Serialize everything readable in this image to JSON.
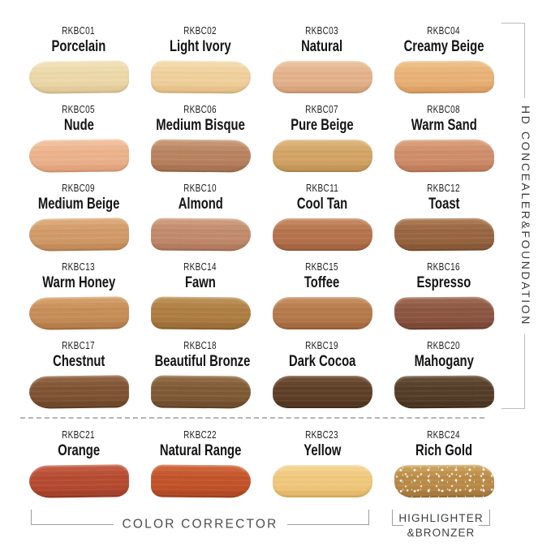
{
  "side_label": "HD CONCEALER&FOUNDATION",
  "bottom_labels": {
    "color_corrector": "COLOR CORRECTOR",
    "highlighter_line1": "HIGHLIGHTER",
    "highlighter_line2": "&BRONZER"
  },
  "accent_colors": {
    "text_dark": "#1e1e1e",
    "bracket_gray": "#9e9e9e",
    "divider_gray": "#b5b5b5"
  },
  "swatches": [
    {
      "code": "RKBC01",
      "name": "Porcelain",
      "base": "#ecd8a9",
      "light": "#f4e4bd",
      "dark": "#dcc391",
      "sparkle": false
    },
    {
      "code": "RKBC02",
      "name": "Light Ivory",
      "base": "#f0d09c",
      "light": "#f6deb2",
      "dark": "#e2ba7f",
      "sparkle": false
    },
    {
      "code": "RKBC03",
      "name": "Natural",
      "base": "#e3b28b",
      "light": "#edc6a2",
      "dark": "#d09b72",
      "sparkle": false
    },
    {
      "code": "RKBC04",
      "name": "Creamy Beige",
      "base": "#e9b176",
      "light": "#f1c48d",
      "dark": "#d6985b",
      "sparkle": false
    },
    {
      "code": "RKBC05",
      "name": "Nude",
      "base": "#ecb28c",
      "light": "#f4c6a4",
      "dark": "#dd9c74",
      "sparkle": false
    },
    {
      "code": "RKBC06",
      "name": "Medium Bisque",
      "base": "#b8825f",
      "light": "#cd9d7b",
      "dark": "#a06a4a",
      "sparkle": false
    },
    {
      "code": "RKBC07",
      "name": "Pure Beige",
      "base": "#d2a465",
      "light": "#e0b97e",
      "dark": "#bd8c4e",
      "sparkle": false
    },
    {
      "code": "RKBC08",
      "name": "Warm Sand",
      "base": "#cf8d6a",
      "light": "#dda480",
      "dark": "#b97453",
      "sparkle": false
    },
    {
      "code": "RKBC09",
      "name": "Medium Beige",
      "base": "#d19a68",
      "light": "#e0af7f",
      "dark": "#bd8251",
      "sparkle": false
    },
    {
      "code": "RKBC10",
      "name": "Almond",
      "base": "#c18a6c",
      "light": "#d2a283",
      "dark": "#ab7255",
      "sparkle": false
    },
    {
      "code": "RKBC11",
      "name": "Cool Tan",
      "base": "#b5734c",
      "light": "#c98e66",
      "dark": "#9c5c38",
      "sparkle": false
    },
    {
      "code": "RKBC12",
      "name": "Toast",
      "base": "#986540",
      "light": "#ae7e57",
      "dark": "#7f4f2e",
      "sparkle": false
    },
    {
      "code": "RKBC13",
      "name": "Warm Honey",
      "base": "#c68d57",
      "light": "#d8a56e",
      "dark": "#ad7440",
      "sparkle": false
    },
    {
      "code": "RKBC14",
      "name": "Fawn",
      "base": "#ad7d42",
      "light": "#c0955a",
      "dark": "#946630",
      "sparkle": false
    },
    {
      "code": "RKBC15",
      "name": "Toffee",
      "base": "#b5794a",
      "light": "#c99263",
      "dark": "#9c6136",
      "sparkle": false
    },
    {
      "code": "RKBC16",
      "name": "Espresso",
      "base": "#8b5541",
      "light": "#a06c55",
      "dark": "#723f2e",
      "sparkle": false
    },
    {
      "code": "RKBC17",
      "name": "Chestnut",
      "base": "#7e5332",
      "light": "#956745",
      "dark": "#663f23",
      "sparkle": false
    },
    {
      "code": "RKBC18",
      "name": "Beautiful Bronze",
      "base": "#7f5a36",
      "light": "#966f49",
      "dark": "#674526",
      "sparkle": false
    },
    {
      "code": "RKBC19",
      "name": "Dark Cocoa",
      "base": "#5f3f27",
      "light": "#745138",
      "dark": "#4a2f1b",
      "sparkle": false
    },
    {
      "code": "RKBC20",
      "name": "Mahogany",
      "base": "#543d28",
      "light": "#675039",
      "dark": "#422e1c",
      "sparkle": false
    },
    {
      "code": "RKBC21",
      "name": "Orange",
      "base": "#b54a30",
      "light": "#c66044",
      "dark": "#9c3a24",
      "sparkle": false
    },
    {
      "code": "RKBC22",
      "name": "Natural Range",
      "base": "#c25329",
      "light": "#d36a3e",
      "dark": "#a8421d",
      "sparkle": false
    },
    {
      "code": "RKBC23",
      "name": "Yellow",
      "base": "#f0c87c",
      "light": "#f6d898",
      "dark": "#e0b160",
      "sparkle": false
    },
    {
      "code": "RKBC24",
      "name": "Rich Gold",
      "base": "#b98a47",
      "light": "#d4a75f",
      "dark": "#9c6f33",
      "sparkle": true
    }
  ]
}
